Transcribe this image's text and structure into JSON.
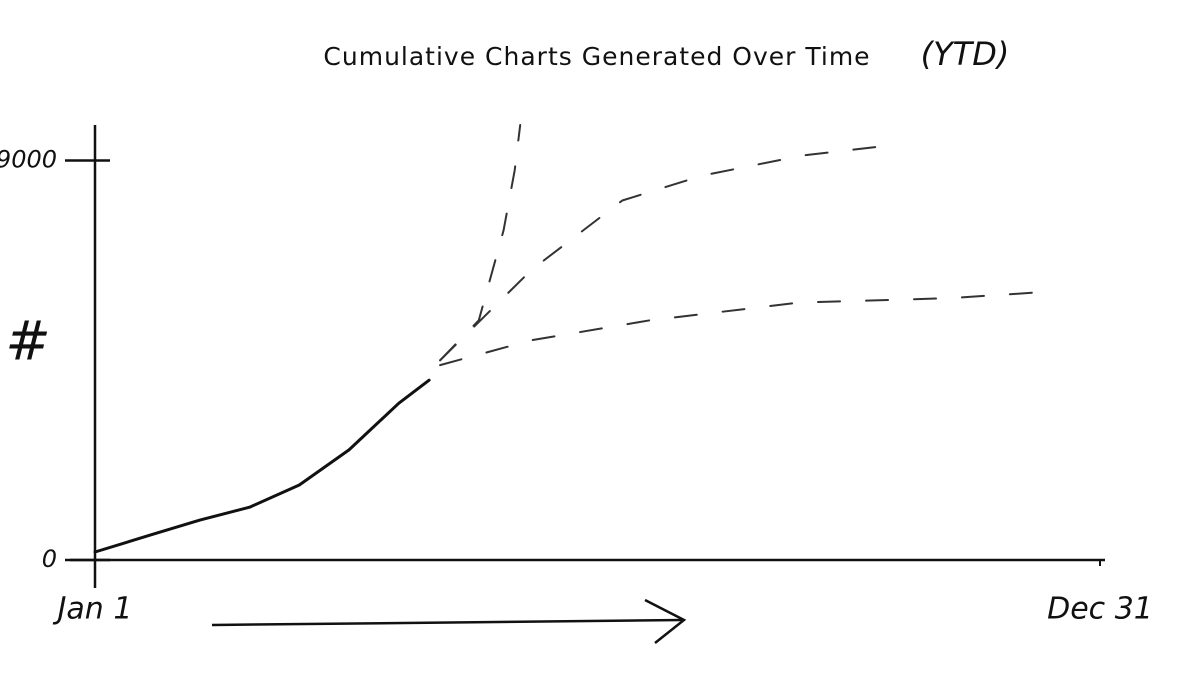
{
  "chart_data": {
    "type": "line",
    "title": "Cumulative Charts Generated Over Time",
    "subtitle": "(YTD)",
    "y_label": "#",
    "xlim": [
      1,
      365
    ],
    "xticks": [
      {
        "value": 1,
        "label": "Jan 1"
      },
      {
        "value": 365,
        "label": "Dec 31"
      }
    ],
    "ylim": [
      0,
      9800
    ],
    "yticks": [
      0,
      9000
    ],
    "grid": false,
    "series": [
      {
        "color": "#111111",
        "style": "solid",
        "x": [
          1,
          21,
          39,
          57,
          75,
          93,
          111,
          122
        ],
        "values": [
          180,
          560,
          900,
          1190,
          1690,
          2480,
          3530,
          4050
        ]
      },
      {
        "color": "#333333",
        "style": "dashed",
        "x": [
          126,
          140,
          149,
          153,
          155
        ],
        "values": [
          4500,
          5400,
          7430,
          8780,
          9800
        ]
      },
      {
        "color": "#333333",
        "style": "dashed",
        "x": [
          126,
          159,
          192,
          221,
          257,
          289
        ],
        "values": [
          4500,
          6530,
          8100,
          8660,
          9110,
          9340
        ]
      },
      {
        "color": "#333333",
        "style": "dashed",
        "x": [
          126,
          159,
          202,
          256,
          311,
          343
        ],
        "values": [
          4390,
          4950,
          5400,
          5800,
          5900,
          6030
        ]
      }
    ]
  }
}
